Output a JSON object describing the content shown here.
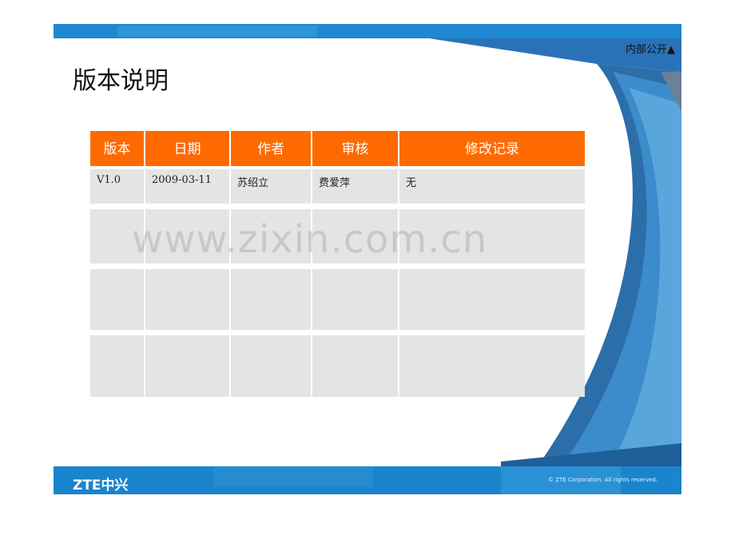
{
  "header": {
    "classification": "内部公开▲"
  },
  "page_title": "版本说明",
  "table": {
    "columns": [
      "版本",
      "日期",
      "作者",
      "审核",
      "修改记录"
    ],
    "rows": [
      [
        "V1.0",
        "2009-03-11",
        "苏绍立",
        "费爱萍",
        "无"
      ],
      [
        "",
        "",
        "",
        "",
        ""
      ],
      [
        "",
        "",
        "",
        "",
        ""
      ],
      [
        "",
        "",
        "",
        "",
        ""
      ]
    ]
  },
  "watermark": "www.zixin.com.cn",
  "footer": {
    "logo": "ZTE中兴",
    "copyright": "© ZTE Corporation. All rights reserved."
  },
  "colors": {
    "header_orange": "#ff6a00",
    "blue": "#1a7fc9",
    "cell_gray": "#e4e4e4"
  }
}
